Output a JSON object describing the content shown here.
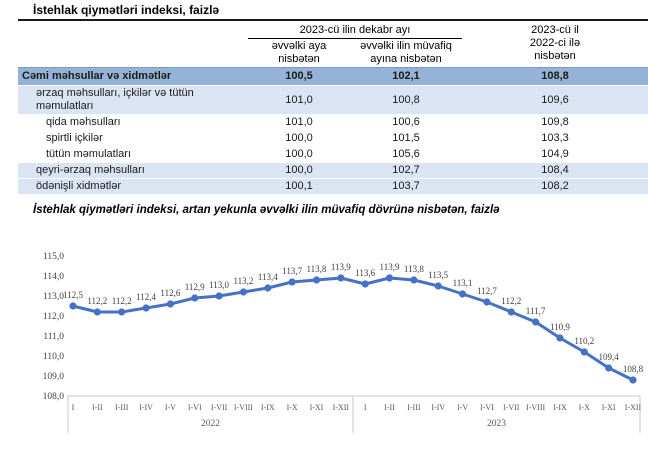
{
  "table": {
    "title": "İstehlak qiymətləri indeksi, faizlə",
    "header": {
      "group": "2023-cü ilin dekabr ayı",
      "col1": "əvvəlki aya nisbətən",
      "col2": "əvvəlki ilin müvafiq ayına nisbətən",
      "col3_line1": "2023-cü il",
      "col3_line2": "2022-ci ilə",
      "col3_line3": "nisbətən"
    },
    "rows": [
      {
        "label": "Cəmi məhsullar və xidmətlər",
        "values": [
          "100,5",
          "102,1",
          "108,8"
        ],
        "level": 0,
        "style": "total"
      },
      {
        "label": "ərzaq məhsulları, içkilər və tütün məmulatları",
        "values": [
          "101,0",
          "100,8",
          "109,6"
        ],
        "level": 1,
        "style": "light"
      },
      {
        "label": "qida məhsulları",
        "values": [
          "101,0",
          "100,6",
          "109,8"
        ],
        "level": 2,
        "style": "plain"
      },
      {
        "label": "spirtli içkilər",
        "values": [
          "100,0",
          "101,5",
          "103,3"
        ],
        "level": 2,
        "style": "plain"
      },
      {
        "label": "tütün məmulatları",
        "values": [
          "100,0",
          "105,6",
          "104,9"
        ],
        "level": 2,
        "style": "plain"
      },
      {
        "label": "qeyri-ərzaq məhsulları",
        "values": [
          "100,0",
          "102,7",
          "108,4"
        ],
        "level": 1,
        "style": "light"
      },
      {
        "label": "ödənişli xidmətlər",
        "values": [
          "100,1",
          "103,7",
          "108,2"
        ],
        "level": 1,
        "style": "light"
      }
    ],
    "colors": {
      "total_row_bg": "#95B3D7",
      "light_row_bg": "#DBE4F2"
    }
  },
  "chart": {
    "title": "İstehlak qiymətləri indeksi, artan yekunla əvvəlki ilin müvafiq dövrünə nisbətən, faizlə"
  },
  "chart_data": {
    "type": "line",
    "title": "İstehlak qiymətləri indeksi, artan yekunla əvvəlki ilin müvafiq dövrünə nisbətən, faizlə",
    "categories": [
      "I",
      "I-II",
      "I-III",
      "I-IV",
      "I-V",
      "I-VI",
      "I-VII",
      "I-VIII",
      "I-IX",
      "I-X",
      "I-XI",
      "I-XII"
    ],
    "group_labels": [
      "2022",
      "2023"
    ],
    "series": [
      {
        "name": "2022",
        "values": [
          112.5,
          112.2,
          112.2,
          112.4,
          112.6,
          112.9,
          113.0,
          113.2,
          113.4,
          113.7,
          113.8,
          113.9
        ]
      },
      {
        "name": "2023",
        "values": [
          113.6,
          113.9,
          113.8,
          113.5,
          113.1,
          112.7,
          112.2,
          111.7,
          110.9,
          110.2,
          109.4,
          108.8
        ]
      }
    ],
    "ylim": [
      108.0,
      115.0
    ],
    "ytick_step": 1.0,
    "decimal_separator": ",",
    "line_color": "#4472C4",
    "marker": "circle",
    "data_labels": true,
    "grid": false,
    "legend": "none"
  }
}
